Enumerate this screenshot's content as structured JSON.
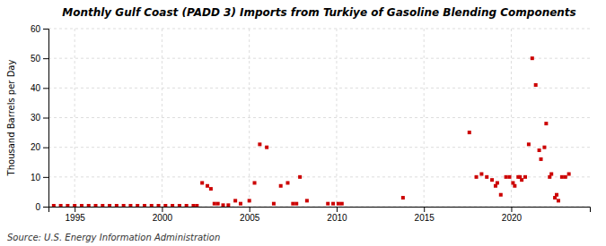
{
  "chart_data": {
    "type": "scatter",
    "title": "Monthly Gulf Coast (PADD 3) Imports from Turkiye of Gasoline Blending Components",
    "ylabel": "Thousand Barrels per Day",
    "source": "Source: U.S. Energy Information Administration",
    "color": "#cc0000",
    "marker": "square",
    "grid": true,
    "xlim": [
      1993.5,
      2024.5
    ],
    "xticks": [
      1995,
      2000,
      2005,
      2010,
      2015,
      2020
    ],
    "ylim": [
      0,
      60
    ],
    "yticks": [
      0,
      10,
      20,
      30,
      40,
      50,
      60
    ],
    "x": [
      1993.8,
      1994.2,
      1994.6,
      1995.0,
      1995.4,
      1995.8,
      1996.2,
      1996.6,
      1997.0,
      1997.4,
      1997.8,
      1998.2,
      1998.6,
      1999.0,
      1999.4,
      1999.8,
      2000.2,
      2000.6,
      2001.0,
      2001.4,
      2001.8,
      2002.0,
      2002.3,
      2002.6,
      2002.8,
      2003.0,
      2003.2,
      2003.5,
      2003.8,
      2004.2,
      2004.5,
      2005.0,
      2005.3,
      2005.6,
      2006.0,
      2006.4,
      2006.8,
      2007.2,
      2007.5,
      2007.7,
      2007.9,
      2008.3,
      2009.5,
      2009.8,
      2010.1,
      2010.3,
      2013.8,
      2017.6,
      2018.0,
      2018.3,
      2018.6,
      2018.9,
      2019.1,
      2019.2,
      2019.4,
      2019.7,
      2019.9,
      2020.1,
      2020.2,
      2020.4,
      2020.5,
      2020.6,
      2020.8,
      2021.0,
      2021.2,
      2021.4,
      2021.6,
      2021.7,
      2021.9,
      2022.0,
      2022.2,
      2022.3,
      2022.5,
      2022.6,
      2022.7,
      2022.9,
      2023.1,
      2023.3
    ],
    "values": [
      0.3,
      0.3,
      0.3,
      0.3,
      0.3,
      0.3,
      0.3,
      0.3,
      0.3,
      0.3,
      0.3,
      0.3,
      0.3,
      0.3,
      0.3,
      0.3,
      0.3,
      0.3,
      0.3,
      0.3,
      0.3,
      0.3,
      8,
      7,
      6,
      1,
      1,
      0.5,
      0.5,
      2,
      1,
      2,
      8,
      21,
      20,
      1,
      7,
      8,
      1,
      1,
      10,
      2,
      1,
      1,
      1,
      1,
      3,
      25,
      10,
      11,
      10,
      9,
      7,
      8,
      4,
      10,
      10,
      8,
      7,
      10,
      10,
      9,
      10,
      21,
      50,
      41,
      19,
      16,
      20,
      28,
      10,
      11,
      3,
      4,
      2,
      10,
      10,
      11
    ]
  }
}
